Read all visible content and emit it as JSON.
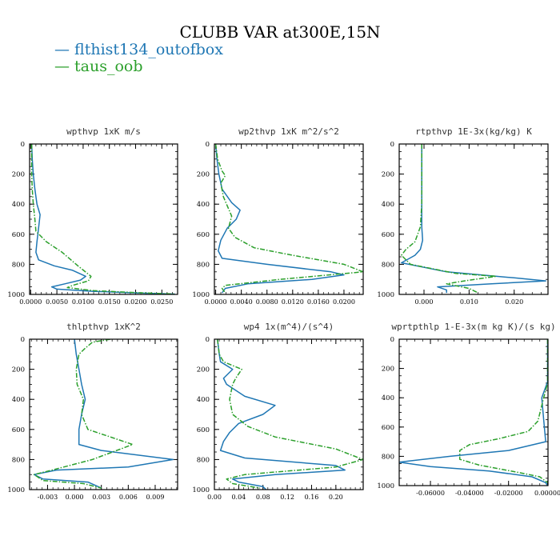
{
  "title": "CLUBB VAR at300E,15N",
  "legend": [
    {
      "name": "flthist134_outofbox",
      "color": "#1f77b4"
    },
    {
      "name": "taus_oob",
      "color": "#2ca02c"
    }
  ],
  "chart_data": [
    {
      "type": "line",
      "title": "wpthvp   1xK m/s",
      "xlim": [
        -0.0002,
        0.028
      ],
      "ylim": [
        1000,
        0
      ],
      "xticks": [
        "0.0000",
        "0.0050",
        "0.0100",
        "0.0150",
        "0.0200",
        "0.0250"
      ],
      "xtick_values": [
        0,
        0.005,
        0.01,
        0.015,
        0.02,
        0.025
      ],
      "yticks": [
        "0",
        "200",
        "400",
        "600",
        "800",
        "1000"
      ],
      "series": [
        {
          "name": "flthist134_outofbox",
          "points": [
            [
              0.0002,
              0
            ],
            [
              0.0003,
              100
            ],
            [
              0.0005,
              200
            ],
            [
              0.0008,
              300
            ],
            [
              0.0012,
              400
            ],
            [
              0.0018,
              470
            ],
            [
              0.0015,
              560
            ],
            [
              0.0012,
              650
            ],
            [
              0.001,
              720
            ],
            [
              0.0015,
              770
            ],
            [
              0.0045,
              810
            ],
            [
              0.008,
              840
            ],
            [
              0.0105,
              880
            ],
            [
              0.0095,
              905
            ],
            [
              0.0065,
              930
            ],
            [
              0.004,
              950
            ],
            [
              0.005,
              965
            ],
            [
              0.012,
              980
            ],
            [
              0.02,
              990
            ],
            [
              0.0275,
              998
            ]
          ]
        },
        {
          "name": "taus_oob",
          "points": [
            [
              0.0002,
              0
            ],
            [
              0.0002,
              100
            ],
            [
              0.0002,
              200
            ],
            [
              0.0003,
              300
            ],
            [
              0.0005,
              400
            ],
            [
              0.0008,
              500
            ],
            [
              0.001,
              580
            ],
            [
              0.003,
              650
            ],
            [
              0.006,
              720
            ],
            [
              0.009,
              810
            ],
            [
              0.0115,
              880
            ],
            [
              0.011,
              910
            ],
            [
              0.008,
              940
            ],
            [
              0.007,
              955
            ],
            [
              0.012,
              975
            ],
            [
              0.02,
              988
            ],
            [
              0.0275,
              998
            ]
          ]
        }
      ]
    },
    {
      "type": "line",
      "title": "wp2thvp   1xK m^2/s^2",
      "xlim": [
        -0.0002,
        0.023
      ],
      "ylim": [
        1000,
        0
      ],
      "xticks": [
        "0.0000",
        "0.0040",
        "0.0080",
        "0.0120",
        "0.0160",
        "0.0200"
      ],
      "xtick_values": [
        0,
        0.004,
        0.008,
        0.012,
        0.016,
        0.02
      ],
      "yticks": [
        "0",
        "200",
        "400",
        "600",
        "800",
        "1000"
      ],
      "series": [
        {
          "name": "flthist134_outofbox",
          "points": [
            [
              0,
              0
            ],
            [
              0.0002,
              100
            ],
            [
              0.0005,
              200
            ],
            [
              0.001,
              300
            ],
            [
              0.0025,
              390
            ],
            [
              0.0038,
              440
            ],
            [
              0.0032,
              500
            ],
            [
              0.0018,
              560
            ],
            [
              0.0008,
              640
            ],
            [
              0.0004,
              710
            ],
            [
              0.001,
              760
            ],
            [
              0.008,
              800
            ],
            [
              0.018,
              850
            ],
            [
              0.02,
              870
            ],
            [
              0.015,
              900
            ],
            [
              0.005,
              930
            ],
            [
              0.0015,
              960
            ],
            [
              0.001,
              990
            ]
          ]
        },
        {
          "name": "taus_oob",
          "points": [
            [
              0,
              0
            ],
            [
              0.0003,
              100
            ],
            [
              0.001,
              180
            ],
            [
              0.0015,
              210
            ],
            [
              0.0008,
              260
            ],
            [
              0.0012,
              350
            ],
            [
              0.0025,
              480
            ],
            [
              0.002,
              560
            ],
            [
              0.003,
              620
            ],
            [
              0.006,
              690
            ],
            [
              0.012,
              740
            ],
            [
              0.02,
              800
            ],
            [
              0.023,
              850
            ],
            [
              0.01,
              900
            ],
            [
              0.0015,
              940
            ],
            [
              0.001,
              960
            ],
            [
              0.0015,
              990
            ]
          ]
        }
      ]
    },
    {
      "type": "line",
      "title": "rtpthvp   1E-3x(kg/kg) K",
      "xlim": [
        -0.0055,
        0.0275
      ],
      "ylim": [
        1000,
        0
      ],
      "xticks": [
        "0.000",
        "0.010",
        "0.020"
      ],
      "xtick_values": [
        0,
        0.01,
        0.02
      ],
      "yticks": [
        "0",
        "200",
        "400",
        "600",
        "800",
        "1000"
      ],
      "series": [
        {
          "name": "flthist134_outofbox",
          "points": [
            [
              -0.0005,
              0
            ],
            [
              -0.0005,
              200
            ],
            [
              -0.0005,
              400
            ],
            [
              -0.0005,
              550
            ],
            [
              -0.0003,
              640
            ],
            [
              -0.0008,
              700
            ],
            [
              -0.002,
              740
            ],
            [
              -0.005,
              790
            ],
            [
              0.005,
              850
            ],
            [
              0.02,
              890
            ],
            [
              0.027,
              910
            ],
            [
              0.015,
              930
            ],
            [
              0.003,
              950
            ],
            [
              0.005,
              970
            ],
            [
              0.005,
              990
            ]
          ]
        },
        {
          "name": "taus_oob",
          "points": [
            [
              -0.0005,
              0
            ],
            [
              -0.0005,
              200
            ],
            [
              -0.0005,
              400
            ],
            [
              -0.0008,
              550
            ],
            [
              -0.002,
              650
            ],
            [
              -0.004,
              700
            ],
            [
              -0.005,
              740
            ],
            [
              -0.003,
              800
            ],
            [
              0.007,
              860
            ],
            [
              0.016,
              880
            ],
            [
              0.009,
              910
            ],
            [
              0.005,
              930
            ],
            [
              0.01,
              960
            ],
            [
              0.012,
              990
            ]
          ]
        }
      ]
    },
    {
      "type": "line",
      "title": "thlpthvp   1xK^2",
      "xlim": [
        -0.005,
        0.0115
      ],
      "ylim": [
        1000,
        0
      ],
      "xticks": [
        "-0.003",
        "0.000",
        "0.003",
        "0.006",
        "0.009"
      ],
      "xtick_values": [
        -0.003,
        0,
        0.003,
        0.006,
        0.009
      ],
      "yticks": [
        "0",
        "200",
        "400",
        "600",
        "800",
        "1000"
      ],
      "series": [
        {
          "name": "flthist134_outofbox",
          "points": [
            [
              0.0,
              0
            ],
            [
              0.0002,
              100
            ],
            [
              0.0005,
              200
            ],
            [
              0.0008,
              300
            ],
            [
              0.0012,
              400
            ],
            [
              0.0008,
              500
            ],
            [
              0.0005,
              600
            ],
            [
              0.0005,
              700
            ],
            [
              0.003,
              740
            ],
            [
              0.011,
              800
            ],
            [
              0.006,
              850
            ],
            [
              -0.002,
              870
            ],
            [
              -0.0045,
              900
            ],
            [
              -0.0035,
              930
            ],
            [
              0.0015,
              950
            ],
            [
              0.003,
              990
            ]
          ]
        },
        {
          "name": "taus_oob",
          "points": [
            [
              0.004,
              0
            ],
            [
              0.002,
              20
            ],
            [
              0.0012,
              60
            ],
            [
              0.0005,
              100
            ],
            [
              0.0002,
              200
            ],
            [
              0.0003,
              300
            ],
            [
              0.001,
              400
            ],
            [
              0.0008,
              500
            ],
            [
              0.0015,
              600
            ],
            [
              0.004,
              650
            ],
            [
              0.0065,
              700
            ],
            [
              0.002,
              800
            ],
            [
              -0.0025,
              870
            ],
            [
              -0.0045,
              900
            ],
            [
              -0.0035,
              940
            ],
            [
              0.001,
              960
            ],
            [
              0.003,
              990
            ]
          ]
        }
      ]
    },
    {
      "type": "line",
      "title": "wp4   1x(m^4)/(s^4)",
      "xlim": [
        0,
        0.245
      ],
      "ylim": [
        1000,
        0
      ],
      "xticks": [
        "0.00",
        "0.04",
        "0.08",
        "0.12",
        "0.16",
        "0.20"
      ],
      "xtick_values": [
        0,
        0.04,
        0.08,
        0.12,
        0.16,
        0.2
      ],
      "yticks": [
        "0",
        "200",
        "400",
        "600",
        "800",
        "1000"
      ],
      "series": [
        {
          "name": "flthist134_outofbox",
          "points": [
            [
              0.005,
              0
            ],
            [
              0.008,
              100
            ],
            [
              0.01,
              150
            ],
            [
              0.03,
              200
            ],
            [
              0.015,
              260
            ],
            [
              0.02,
              300
            ],
            [
              0.05,
              380
            ],
            [
              0.1,
              440
            ],
            [
              0.08,
              500
            ],
            [
              0.04,
              560
            ],
            [
              0.025,
              620
            ],
            [
              0.015,
              680
            ],
            [
              0.01,
              740
            ],
            [
              0.05,
              790
            ],
            [
              0.2,
              840
            ],
            [
              0.215,
              870
            ],
            [
              0.1,
              900
            ],
            [
              0.03,
              930
            ],
            [
              0.04,
              950
            ],
            [
              0.08,
              980
            ],
            [
              0.085,
              1000
            ]
          ]
        },
        {
          "name": "taus_oob",
          "points": [
            [
              0.005,
              0
            ],
            [
              0.008,
              100
            ],
            [
              0.015,
              150
            ],
            [
              0.045,
              200
            ],
            [
              0.035,
              260
            ],
            [
              0.03,
              300
            ],
            [
              0.025,
              400
            ],
            [
              0.03,
              500
            ],
            [
              0.055,
              580
            ],
            [
              0.1,
              650
            ],
            [
              0.2,
              730
            ],
            [
              0.245,
              800
            ],
            [
              0.2,
              850
            ],
            [
              0.05,
              900
            ],
            [
              0.02,
              930
            ],
            [
              0.03,
              960
            ],
            [
              0.075,
              990
            ]
          ]
        }
      ]
    },
    {
      "type": "line",
      "title": "wprtpthlp   1-E-3x(m kg K)/(s kg)",
      "xlim": [
        -0.076,
        0.0002
      ],
      "ylim": [
        1000,
        0
      ],
      "xticks": [
        "-0.06000",
        "-0.04000",
        "-0.02000",
        "0.00000"
      ],
      "xtick_values": [
        -0.06,
        -0.04,
        -0.02,
        0
      ],
      "yticks": [
        "0",
        "200",
        "400",
        "600",
        "800",
        "1000"
      ],
      "series": [
        {
          "name": "flthist134_outofbox",
          "points": [
            [
              0,
              0
            ],
            [
              0,
              200
            ],
            [
              0,
              290
            ],
            [
              -0.003,
              400
            ],
            [
              -0.002,
              550
            ],
            [
              -0.001,
              700
            ],
            [
              -0.02,
              760
            ],
            [
              -0.05,
              800
            ],
            [
              -0.076,
              840
            ],
            [
              -0.06,
              870
            ],
            [
              -0.03,
              900
            ],
            [
              -0.008,
              940
            ],
            [
              -0.001,
              980
            ],
            [
              0,
              1000
            ]
          ]
        },
        {
          "name": "taus_oob",
          "points": [
            [
              0,
              0
            ],
            [
              0,
              200
            ],
            [
              0,
              300
            ],
            [
              -0.002,
              400
            ],
            [
              -0.005,
              560
            ],
            [
              -0.01,
              630
            ],
            [
              -0.025,
              680
            ],
            [
              -0.04,
              720
            ],
            [
              -0.045,
              760
            ],
            [
              -0.045,
              820
            ],
            [
              -0.035,
              860
            ],
            [
              -0.015,
              910
            ],
            [
              -0.004,
              940
            ],
            [
              0,
              980
            ]
          ]
        }
      ]
    }
  ]
}
